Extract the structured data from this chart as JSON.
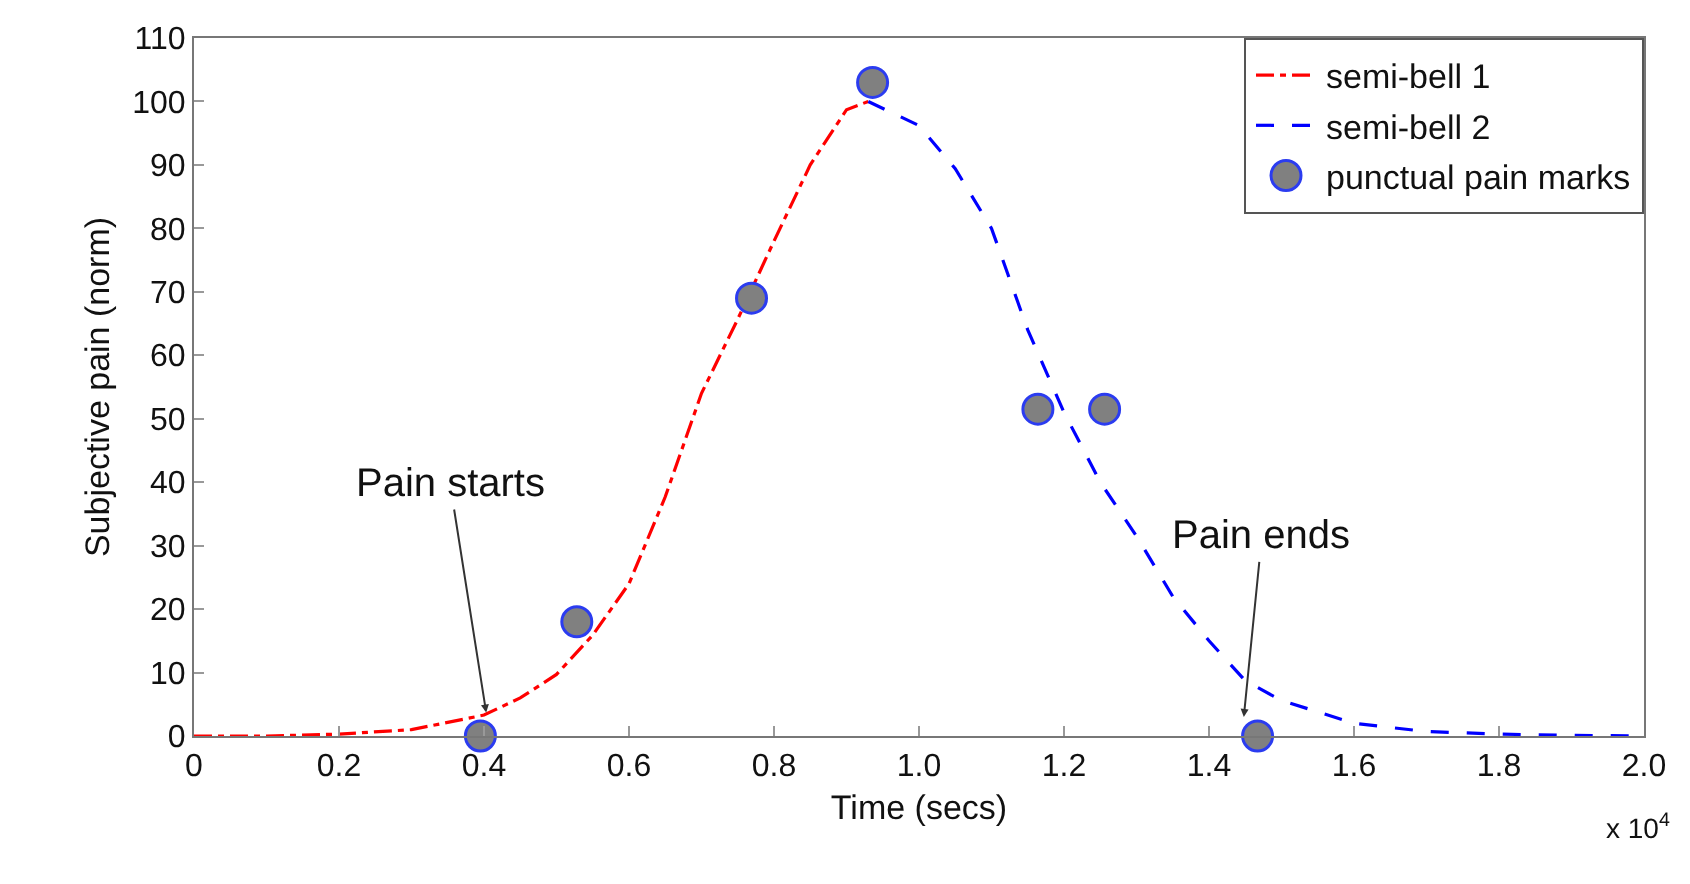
{
  "chart_data": {
    "type": "line",
    "xlabel": "Time (secs)",
    "ylabel": "Subjective pain (norm)",
    "xlim": [
      0,
      2.0
    ],
    "ylim": [
      0,
      110
    ],
    "xticks": [
      0,
      0.2,
      0.4,
      0.6,
      0.8,
      {
        "value": 1.0,
        "label": "1.0"
      },
      1.2,
      1.4,
      1.6,
      1.8,
      {
        "value": 2.0,
        "label": "2.0"
      }
    ],
    "yticks": [
      0,
      10,
      20,
      30,
      40,
      50,
      60,
      70,
      80,
      90,
      100,
      110
    ],
    "legend": "top right",
    "series": [
      {
        "name": "semi-bell 1",
        "line_style": "dashdot",
        "marker": "none",
        "color": "#ff0000",
        "x": [
          0,
          0.1,
          0.2,
          0.3,
          0.4,
          0.45,
          0.5,
          0.55,
          0.6,
          0.65,
          0.7,
          0.75,
          0.8,
          0.85,
          0.9,
          0.93
        ],
        "values": [
          0,
          0,
          0.3,
          1,
          3.3,
          6,
          9.7,
          15.9,
          24,
          37.7,
          54,
          65.7,
          78,
          90,
          98.7,
          100
        ]
      },
      {
        "name": "semi-bell 2",
        "line_style": "dashed",
        "marker": "none",
        "color": "#0000ff",
        "x": [
          0.93,
          1.0,
          1.05,
          1.1,
          1.15,
          1.2,
          1.25,
          1.3,
          1.35,
          1.4,
          1.45,
          1.5,
          1.6,
          1.7,
          1.8,
          1.9,
          2.0
        ],
        "values": [
          100,
          96.2,
          89.4,
          80,
          64,
          51,
          40,
          31.5,
          22,
          15,
          8.7,
          5.6,
          2,
          0.7,
          0.3,
          0.1,
          0
        ]
      },
      {
        "name": "punctual pain marks",
        "type": "scatter",
        "marker": "circle",
        "color": "#808080",
        "x": [
          0.395,
          0.528,
          0.769,
          0.936,
          1.164,
          1.256,
          1.467
        ],
        "values": [
          0,
          18,
          69,
          103,
          51.5,
          51.5,
          0
        ]
      }
    ],
    "annotations": [
      {
        "text": "Pain starts",
        "x": 0.403,
        "y": 3.7
      },
      {
        "text": "Pain ends",
        "x": 1.448,
        "y": 3
      },
      "x 10$^{4}$"
    ]
  }
}
